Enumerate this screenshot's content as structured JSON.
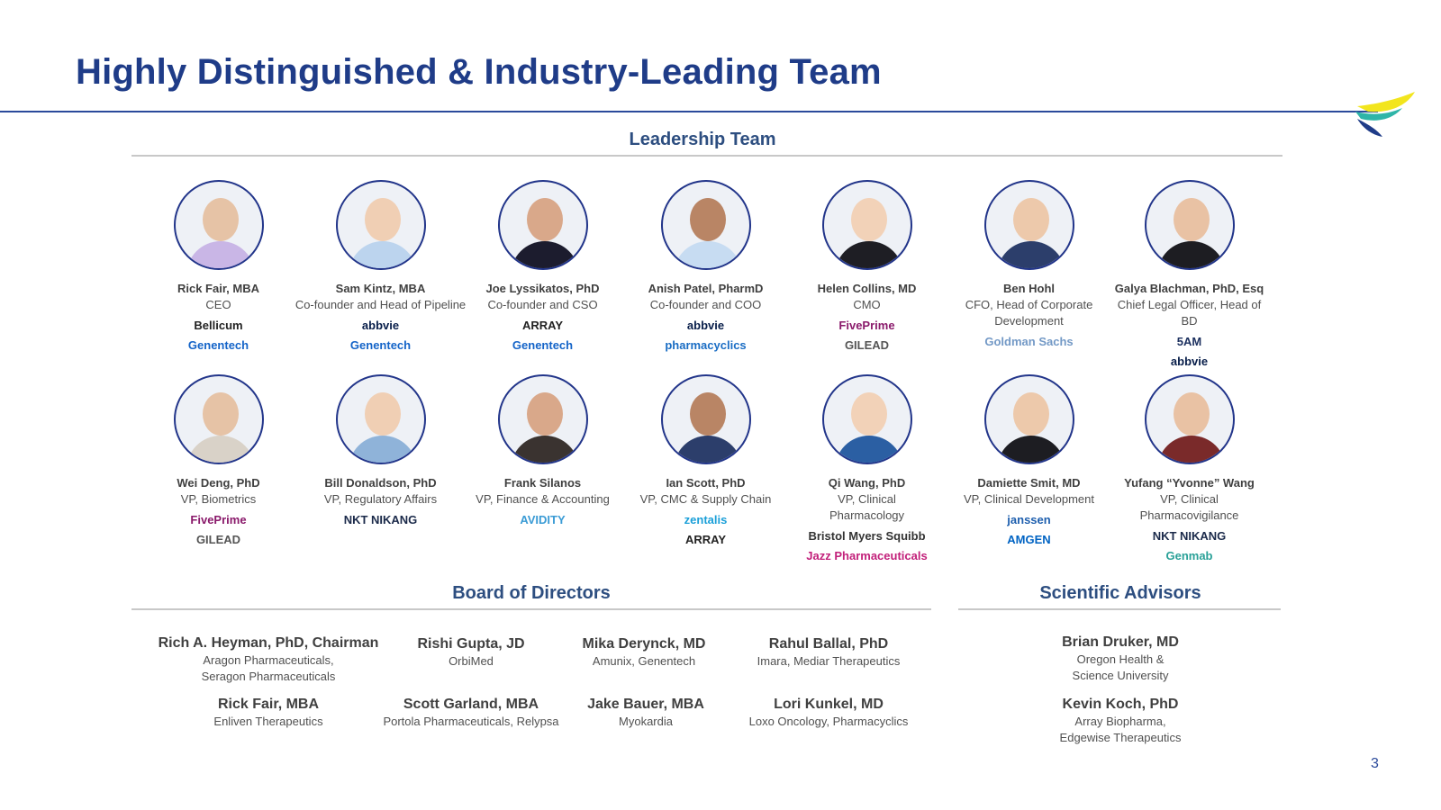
{
  "page": {
    "title": "Highly Distinguished & Industry-Leading Team",
    "page_number": "3"
  },
  "colors": {
    "title": "#1f3c88",
    "section_heading": "#2d4e80",
    "avatar_border": "#22358a",
    "rule": "#2b4a9b"
  },
  "leadership": {
    "heading": "Leadership Team",
    "people": [
      {
        "name": "Rick Fair, MBA",
        "role": "CEO",
        "companies": [
          {
            "label": "Bellicum",
            "color": "#222222"
          },
          {
            "label": "Genentech",
            "color": "#1464c8"
          }
        ]
      },
      {
        "name": "Sam Kintz, MBA",
        "role": "Co-founder and Head of Pipeline",
        "companies": [
          {
            "label": "abbvie",
            "color": "#071d49"
          },
          {
            "label": "Genentech",
            "color": "#1464c8"
          }
        ]
      },
      {
        "name": "Joe Lyssikatos, PhD",
        "role": "Co-founder and CSO",
        "companies": [
          {
            "label": "ARRAY",
            "color": "#222222"
          },
          {
            "label": "Genentech",
            "color": "#1464c8"
          }
        ]
      },
      {
        "name": "Anish Patel, PharmD",
        "role": "Co-founder and COO",
        "companies": [
          {
            "label": "abbvie",
            "color": "#071d49"
          },
          {
            "label": "pharmacyclics",
            "color": "#1a6dc4"
          }
        ]
      },
      {
        "name": "Helen Collins, MD",
        "role": "CMO",
        "companies": [
          {
            "label": "FivePrime",
            "color": "#8a1a6b"
          },
          {
            "label": "GILEAD",
            "color": "#555555"
          }
        ]
      },
      {
        "name": "Ben Hohl",
        "role": "CFO, Head of Corporate Development",
        "companies": [
          {
            "label": "Goldman Sachs",
            "color": "#7399c6"
          }
        ]
      },
      {
        "name": "Galya Blachman, PhD, Esq",
        "role": "Chief Legal Officer, Head of BD",
        "companies": [
          {
            "label": "5AM",
            "color": "#1b2f5e"
          },
          {
            "label": "abbvie",
            "color": "#071d49"
          }
        ]
      },
      {
        "name": "Wei Deng, PhD",
        "role": "VP, Biometrics",
        "companies": [
          {
            "label": "FivePrime",
            "color": "#8a1a6b"
          },
          {
            "label": "GILEAD",
            "color": "#555555"
          }
        ]
      },
      {
        "name": "Bill Donaldson, PhD",
        "role": "VP, Regulatory Affairs",
        "companies": [
          {
            "label": "NKT NIKANG",
            "color": "#1b2a4a"
          }
        ]
      },
      {
        "name": "Frank Silanos",
        "role": "VP, Finance & Accounting",
        "companies": [
          {
            "label": "AVIDITY",
            "color": "#3a9bd5"
          }
        ]
      },
      {
        "name": "Ian Scott, PhD",
        "role": "VP, CMC & Supply Chain",
        "companies": [
          {
            "label": "zentalis",
            "color": "#1a9fd8"
          },
          {
            "label": "ARRAY",
            "color": "#222222"
          }
        ]
      },
      {
        "name": "Qi Wang, PhD",
        "role": "VP, Clinical Pharmacology",
        "companies": [
          {
            "label": "Bristol Myers Squibb",
            "color": "#333333"
          },
          {
            "label": "Jazz Pharmaceuticals",
            "color": "#c2207a"
          }
        ]
      },
      {
        "name": "Damiette Smit, MD",
        "role": "VP, Clinical Development",
        "companies": [
          {
            "label": "janssen",
            "color": "#1e5fae"
          },
          {
            "label": "AMGEN",
            "color": "#0063c3"
          }
        ]
      },
      {
        "name": "Yufang “Yvonne” Wang",
        "role": "VP, Clinical Pharmacovigilance",
        "companies": [
          {
            "label": "NKT NIKANG",
            "color": "#1b2a4a"
          },
          {
            "label": "Genmab",
            "color": "#2aa198"
          }
        ]
      }
    ]
  },
  "board": {
    "heading": "Board of Directors",
    "members": [
      {
        "name": "Rich A. Heyman, PhD, Chairman",
        "affiliation": "Aragon Pharmaceuticals, Seragon Pharmaceuticals"
      },
      {
        "name": "Rishi Gupta, JD",
        "affiliation": "OrbiMed"
      },
      {
        "name": "Mika Derynck, MD",
        "affiliation": "Amunix, Genentech"
      },
      {
        "name": "Rahul Ballal, PhD",
        "affiliation": "Imara, Mediar Therapeutics"
      },
      {
        "name": "Rick Fair, MBA",
        "affiliation": "Enliven Therapeutics"
      },
      {
        "name": "Scott Garland, MBA",
        "affiliation": "Portola Pharmaceuticals, Relypsa"
      },
      {
        "name": "Jake Bauer, MBA",
        "affiliation": "Myokardia"
      },
      {
        "name": "Lori Kunkel, MD",
        "affiliation": "Loxo Oncology, Pharmacyclics"
      }
    ]
  },
  "advisors": {
    "heading": "Scientific Advisors",
    "members": [
      {
        "name": "Brian Druker, MD",
        "affiliation": "Oregon Health & Science University"
      },
      {
        "name": "Kevin Koch, PhD",
        "affiliation": "Array Biopharma, Edgewise Therapeutics"
      }
    ]
  }
}
